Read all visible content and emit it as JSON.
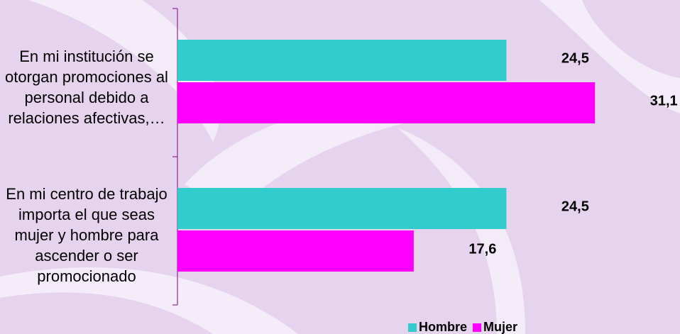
{
  "chart_data": {
    "type": "bar",
    "orientation": "horizontal",
    "categories": [
      "En mi institución se otorgan promociones al personal debido a relaciones afectivas,…",
      "En mi centro de trabajo importa el que seas mujer y hombre para ascender o ser promocionado"
    ],
    "series": [
      {
        "name": "Hombre",
        "color": "#33cccc",
        "values": [
          24.5,
          24.5
        ],
        "value_labels": [
          "24,5",
          "24,5"
        ]
      },
      {
        "name": "Mujer",
        "color": "#ff00ff",
        "values": [
          31.1,
          17.6
        ],
        "value_labels": [
          "31,1",
          "17,6"
        ]
      }
    ],
    "xlim": [
      0,
      35
    ],
    "legend": "bottom"
  }
}
